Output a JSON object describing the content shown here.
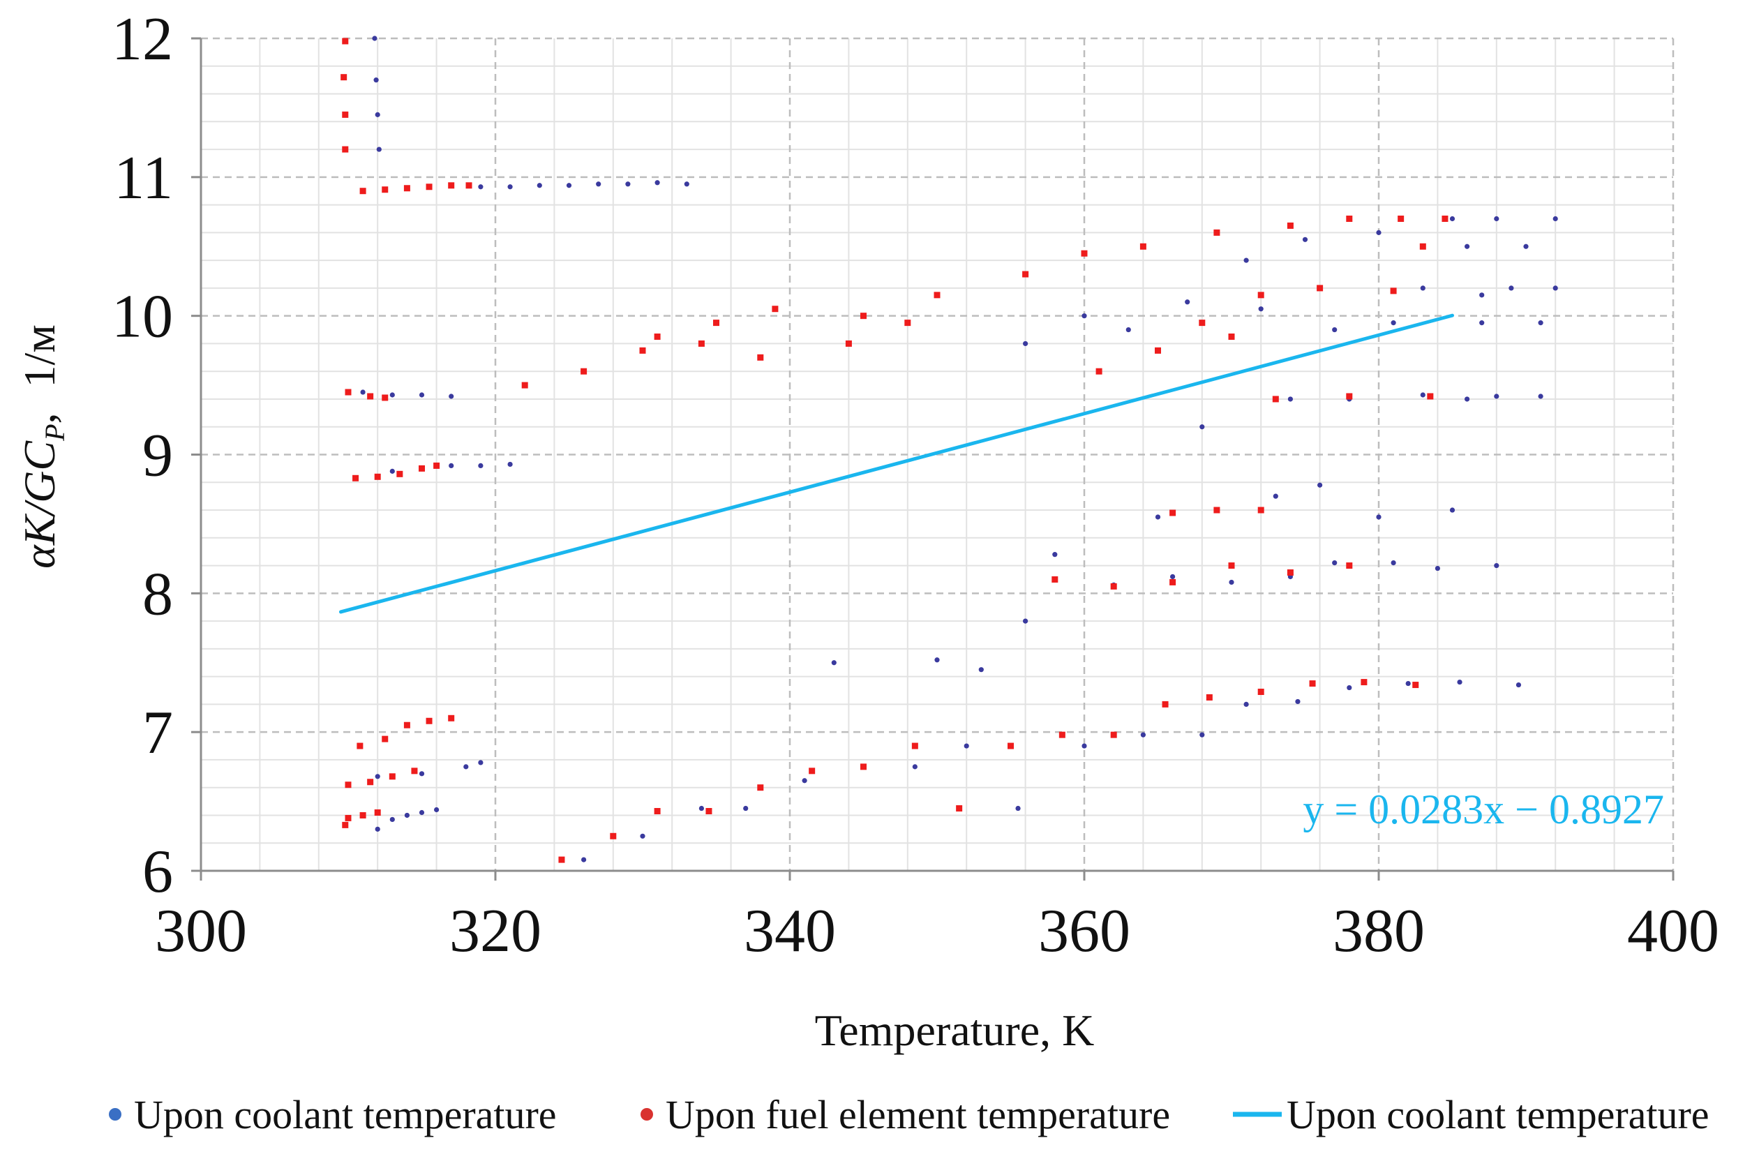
{
  "chart_data": {
    "type": "scatter",
    "title": "",
    "xlabel": "Temperature, K",
    "ylabel": {
      "main": "αK/GC",
      "subscript": "P",
      "separator": ",",
      "unit": "1/м"
    },
    "xlim": [
      300,
      400
    ],
    "ylim": [
      6,
      12
    ],
    "x_ticks": [
      300,
      320,
      340,
      360,
      380,
      400
    ],
    "y_ticks": [
      6,
      7,
      8,
      9,
      10,
      11,
      12
    ],
    "grid": true,
    "legend_position": "bottom",
    "colors": {
      "coolant": "#3a3a9e",
      "fuel": "#ee1c1c",
      "trend": "#1ab6ee",
      "grid_major": "#bdbdbd",
      "grid_minor": "#e2e2e2",
      "axis": "#8c8c8c"
    },
    "trendline": {
      "slope": 0.0283,
      "intercept": -0.8927,
      "x_start": 309.5,
      "x_end": 385,
      "label": "y = 0.0283x − 0.8927"
    },
    "series": [
      {
        "name": "Upon coolant temperature",
        "kind": "scatter",
        "color": "#3a3a9e",
        "points": [
          [
            311.8,
            12.0
          ],
          [
            311.9,
            11.7
          ],
          [
            312.0,
            11.45
          ],
          [
            312.1,
            11.2
          ],
          [
            319,
            10.93
          ],
          [
            321,
            10.93
          ],
          [
            323,
            10.94
          ],
          [
            325,
            10.94
          ],
          [
            327,
            10.95
          ],
          [
            329,
            10.95
          ],
          [
            331,
            10.96
          ],
          [
            333,
            10.95
          ],
          [
            311,
            9.45
          ],
          [
            313,
            9.43
          ],
          [
            315,
            9.43
          ],
          [
            317,
            9.42
          ],
          [
            313,
            8.88
          ],
          [
            315,
            8.9
          ],
          [
            317,
            8.92
          ],
          [
            319,
            8.92
          ],
          [
            321,
            8.93
          ],
          [
            312,
            6.3
          ],
          [
            313,
            6.37
          ],
          [
            314,
            6.4
          ],
          [
            315,
            6.42
          ],
          [
            316,
            6.44
          ],
          [
            312,
            6.68
          ],
          [
            315,
            6.7
          ],
          [
            318,
            6.75
          ],
          [
            319,
            6.78
          ],
          [
            326,
            6.08
          ],
          [
            330,
            6.25
          ],
          [
            334,
            6.45
          ],
          [
            337,
            6.45
          ],
          [
            341,
            6.65
          ],
          [
            345,
            6.75
          ],
          [
            348.5,
            6.75
          ],
          [
            352,
            6.9
          ],
          [
            355.5,
            6.45
          ],
          [
            360,
            6.9
          ],
          [
            364,
            6.98
          ],
          [
            368,
            6.98
          ],
          [
            371,
            7.2
          ],
          [
            374.5,
            7.22
          ],
          [
            378,
            7.32
          ],
          [
            382,
            7.35
          ],
          [
            385.5,
            7.36
          ],
          [
            389.5,
            7.34
          ],
          [
            343,
            7.5
          ],
          [
            350,
            7.52
          ],
          [
            353,
            7.45
          ],
          [
            356,
            7.8
          ],
          [
            358,
            8.28
          ],
          [
            362,
            8.06
          ],
          [
            366,
            8.12
          ],
          [
            370,
            8.08
          ],
          [
            374,
            8.12
          ],
          [
            377,
            8.22
          ],
          [
            381,
            8.22
          ],
          [
            384,
            8.18
          ],
          [
            388,
            8.2
          ],
          [
            365,
            8.55
          ],
          [
            369,
            8.6
          ],
          [
            373,
            8.7
          ],
          [
            376,
            8.78
          ],
          [
            380,
            8.55
          ],
          [
            385,
            8.6
          ],
          [
            368,
            9.2
          ],
          [
            374,
            9.4
          ],
          [
            378,
            9.4
          ],
          [
            383,
            9.43
          ],
          [
            386,
            9.4
          ],
          [
            388,
            9.42
          ],
          [
            391,
            9.42
          ],
          [
            371,
            10.4
          ],
          [
            375,
            10.55
          ],
          [
            380,
            10.6
          ],
          [
            385,
            10.7
          ],
          [
            388,
            10.7
          ],
          [
            392,
            10.7
          ],
          [
            390,
            10.5
          ],
          [
            386,
            10.5
          ],
          [
            383,
            10.2
          ],
          [
            387,
            10.15
          ],
          [
            389,
            10.2
          ],
          [
            392,
            10.2
          ],
          [
            391,
            9.95
          ],
          [
            387,
            9.95
          ],
          [
            381,
            9.95
          ],
          [
            356,
            9.8
          ],
          [
            360,
            10.0
          ],
          [
            363,
            9.9
          ],
          [
            367,
            10.1
          ],
          [
            372,
            10.05
          ],
          [
            377,
            9.9
          ]
        ]
      },
      {
        "name": "Upon fuel element temperature",
        "kind": "scatter",
        "color": "#ee1c1c",
        "points": [
          [
            309.8,
            11.98
          ],
          [
            309.7,
            11.72
          ],
          [
            309.8,
            11.45
          ],
          [
            309.8,
            11.2
          ],
          [
            311,
            10.9
          ],
          [
            312.5,
            10.91
          ],
          [
            314,
            10.92
          ],
          [
            315.5,
            10.93
          ],
          [
            317,
            10.94
          ],
          [
            318.2,
            10.94
          ],
          [
            310,
            9.45
          ],
          [
            311.5,
            9.42
          ],
          [
            312.5,
            9.41
          ],
          [
            310.5,
            8.83
          ],
          [
            312,
            8.84
          ],
          [
            313.5,
            8.86
          ],
          [
            315,
            8.9
          ],
          [
            316,
            8.92
          ],
          [
            310,
            6.38
          ],
          [
            311,
            6.4
          ],
          [
            312,
            6.42
          ],
          [
            309.8,
            6.33
          ],
          [
            310,
            6.62
          ],
          [
            311.5,
            6.64
          ],
          [
            313,
            6.68
          ],
          [
            314.5,
            6.72
          ],
          [
            310.8,
            6.9
          ],
          [
            312.5,
            6.95
          ],
          [
            314,
            7.05
          ],
          [
            315.5,
            7.08
          ],
          [
            317,
            7.1
          ],
          [
            324.5,
            6.08
          ],
          [
            328,
            6.25
          ],
          [
            331,
            6.43
          ],
          [
            334.5,
            6.43
          ],
          [
            338,
            6.6
          ],
          [
            341.5,
            6.72
          ],
          [
            345,
            6.75
          ],
          [
            348.5,
            6.9
          ],
          [
            351.5,
            6.45
          ],
          [
            355,
            6.9
          ],
          [
            358.5,
            6.98
          ],
          [
            362,
            6.98
          ],
          [
            365.5,
            7.2
          ],
          [
            368.5,
            7.25
          ],
          [
            372,
            7.29
          ],
          [
            375.5,
            7.35
          ],
          [
            379,
            7.36
          ],
          [
            382.5,
            7.34
          ],
          [
            331,
            9.85
          ],
          [
            335,
            9.95
          ],
          [
            339,
            10.05
          ],
          [
            345,
            10.0
          ],
          [
            350,
            10.15
          ],
          [
            356,
            10.3
          ],
          [
            360,
            10.45
          ],
          [
            364,
            10.5
          ],
          [
            369,
            10.6
          ],
          [
            374,
            10.65
          ],
          [
            378,
            10.7
          ],
          [
            381.5,
            10.7
          ],
          [
            384.5,
            10.7
          ],
          [
            322,
            9.5
          ],
          [
            326,
            9.6
          ],
          [
            330,
            9.75
          ],
          [
            334,
            9.8
          ],
          [
            338,
            9.7
          ],
          [
            344,
            9.8
          ],
          [
            348,
            9.95
          ],
          [
            368,
            9.95
          ],
          [
            372,
            10.15
          ],
          [
            376,
            10.2
          ],
          [
            381,
            10.18
          ],
          [
            383,
            10.5
          ],
          [
            361,
            9.6
          ],
          [
            365,
            9.75
          ],
          [
            370,
            9.85
          ],
          [
            370,
            8.2
          ],
          [
            374,
            8.15
          ],
          [
            378,
            8.2
          ],
          [
            366,
            8.08
          ],
          [
            362,
            8.05
          ],
          [
            358,
            8.1
          ],
          [
            383.5,
            9.42
          ],
          [
            378,
            9.42
          ],
          [
            373,
            9.4
          ],
          [
            369,
            8.6
          ],
          [
            372,
            8.6
          ],
          [
            366,
            8.58
          ]
        ]
      }
    ]
  },
  "trend_equation": "y = 0.0283x − 0.8927",
  "legend": [
    {
      "label": "Upon coolant temperature",
      "marker": "dot",
      "color": "#3a6fc4"
    },
    {
      "label": "Upon fuel element temperature",
      "marker": "dot",
      "color": "#d9322f"
    },
    {
      "label": "Upon coolant temperature",
      "marker": "line",
      "color": "#1ab6ee"
    }
  ]
}
